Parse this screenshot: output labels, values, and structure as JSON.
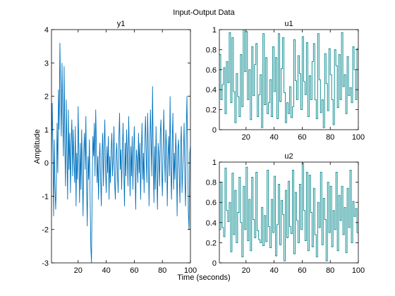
{
  "figure": {
    "title": "Input-Output Data",
    "xlabel": "Time (seconds)",
    "ylabel": "Amplitude"
  },
  "colors": {
    "y1": "#0072bd",
    "u": "#00868b",
    "axis": "#000000",
    "background": "#ffffff"
  },
  "chart_data": [
    {
      "type": "line",
      "title": "y1",
      "ylabel": "Amplitude",
      "xlim": [
        1,
        100
      ],
      "ylim": [
        -3,
        4
      ],
      "xticks": [
        20,
        40,
        60,
        80,
        100
      ],
      "yticks": [
        -3,
        -2,
        -1,
        0,
        1,
        2,
        3,
        4
      ],
      "series": [
        {
          "x": [
            1,
            1.5,
            2,
            2.5,
            3,
            3.5,
            4,
            4.5,
            5,
            5.5,
            6,
            6.5,
            7,
            7.5,
            8,
            8.5,
            9,
            9.5,
            10,
            10.5,
            11,
            11.5,
            12,
            12.5,
            13,
            13.5,
            14,
            14.5,
            15,
            15.5,
            16,
            16.5,
            17,
            17.5,
            18,
            18.5,
            19,
            19.5,
            20,
            20.5,
            21,
            21.5,
            22,
            22.5,
            23,
            23.5,
            24,
            24.5,
            25,
            25.5,
            26,
            26.5,
            27,
            27.5,
            28,
            28.5,
            29,
            29.5,
            30,
            30.5,
            31,
            31.5,
            32,
            32.5,
            33,
            33.5,
            34,
            34.5,
            35,
            35.5,
            36,
            36.5,
            37,
            37.5,
            38,
            38.5,
            39,
            39.5,
            40,
            40.5,
            41,
            41.5,
            42,
            42.5,
            43,
            43.5,
            44,
            44.5,
            45,
            45.5,
            46,
            46.5,
            47,
            47.5,
            48,
            48.5,
            49,
            49.5,
            50,
            50.5,
            51,
            51.5,
            52,
            52.5,
            53,
            53.5,
            54,
            54.5,
            55,
            55.5,
            56,
            56.5,
            57,
            57.5,
            58,
            58.5,
            59,
            59.5,
            60,
            60.5,
            61,
            61.5,
            62,
            62.5,
            63,
            63.5,
            64,
            64.5,
            65,
            65.5,
            66,
            66.5,
            67,
            67.5,
            68,
            68.5,
            69,
            69.5,
            70,
            70.5,
            71,
            71.5,
            72,
            72.5,
            73,
            73.5,
            74,
            74.5,
            75,
            75.5,
            76,
            76.5,
            77,
            77.5,
            78,
            78.5,
            79,
            79.5,
            80,
            80.5,
            81,
            81.5,
            82,
            82.5,
            83,
            83.5,
            84,
            84.5,
            85,
            85.5,
            86,
            86.5,
            87,
            87.5,
            88,
            88.5,
            89,
            89.5,
            90,
            90.5,
            91,
            91.5,
            92,
            92.5,
            93,
            93.5,
            94,
            94.5,
            95,
            95.5,
            96,
            96.5,
            97,
            97.5,
            98,
            98.5,
            99,
            99.5,
            100
          ],
          "y": [
            0.3,
            1.8,
            0.5,
            -1.6,
            0.7,
            -0.8,
            -1.4,
            -0.5,
            1.2,
            -0.3,
            2.2,
            1.0,
            3.6,
            2.1,
            0.8,
            3.0,
            1.5,
            0.2,
            2.9,
            0.6,
            -0.7,
            1.9,
            0.4,
            -1.1,
            1.6,
            -0.2,
            0.9,
            -0.9,
            0.6,
            1.3,
            -0.4,
            1.0,
            0.0,
            -0.6,
            1.1,
            -1.3,
            0.3,
            -0.5,
            1.7,
            0.2,
            -1.2,
            0.6,
            -0.8,
            1.0,
            -0.3,
            -1.6,
            0.4,
            0.9,
            -0.2,
            1.4,
            -0.7,
            -1.9,
            0.2,
            -0.5,
            0.7,
            -1.0,
            -2.5,
            -3.0,
            -0.6,
            0.8,
            0.2,
            1.2,
            -0.4,
            1.6,
            0.5,
            -0.6,
            0.2,
            -1.1,
            0.1,
            0.6,
            -0.5,
            -1.3,
            0.3,
            0.9,
            -0.7,
            0.4,
            1.3,
            -0.2,
            -0.9,
            0.5,
            -0.3,
            0.8,
            -1.1,
            0.2,
            -0.6,
            0.4,
            0.9,
            -0.4,
            0.1,
            1.1,
            -0.6,
            -1.1,
            0.2,
            0.6,
            -0.3,
            -0.9,
            0.7,
            1.5,
            -0.2,
            0.4,
            -0.8,
            0.3,
            1.2,
            -0.1,
            -1.3,
            0.6,
            -0.4,
            1.0,
            0.3,
            -0.7,
            1.4,
            0.2,
            -1.0,
            0.5,
            -0.4,
            0.8,
            -0.8,
            0.3,
            1.1,
            -0.2,
            -1.4,
            0.4,
            0.1,
            -0.6,
            0.9,
            -0.3,
            0.6,
            -1.1,
            0.2,
            1.2,
            -0.5,
            0.3,
            -0.9,
            0.7,
            1.4,
            0.2,
            -0.6,
            1.5,
            0.4,
            -1.3,
            0.3,
            1.6,
            0.6,
            -0.4,
            2.3,
            0.2,
            -1.2,
            0.5,
            -0.8,
            1.1,
            -0.3,
            -1.4,
            0.6,
            0.2,
            -0.7,
            0.9,
            1.3,
            -0.2,
            -1.0,
            0.4,
            1.6,
            0.3,
            -0.6,
            1.0,
            0.5,
            -1.3,
            0.2,
            0.8,
            -0.4,
            2.0,
            -0.2,
            -1.1,
            0.6,
            1.5,
            -0.8,
            0.3,
            -0.5,
            0.9,
            0.2,
            -1.6,
            0.4,
            0.7,
            -0.3,
            -1.2,
            0.5,
            1.1,
            -0.9,
            -0.2,
            0.3,
            1.2,
            -0.5,
            -1.3,
            0.9,
            2.0,
            0.3,
            -1.5,
            -2.0,
            0.3,
            0.5
          ]
        }
      ]
    },
    {
      "type": "line",
      "step": true,
      "title": "u1",
      "xlim": [
        1,
        100
      ],
      "ylim": [
        0,
        1
      ],
      "xticks": [
        20,
        40,
        60,
        80,
        100
      ],
      "yticks": [
        0,
        0.2,
        0.4,
        0.6,
        0.8,
        1
      ],
      "series": [
        {
          "x": [
            1,
            2,
            3,
            4,
            5,
            6,
            7,
            8,
            9,
            10,
            11,
            12,
            13,
            14,
            15,
            16,
            17,
            18,
            19,
            20,
            21,
            22,
            23,
            24,
            25,
            26,
            27,
            28,
            29,
            30,
            31,
            32,
            33,
            34,
            35,
            36,
            37,
            38,
            39,
            40,
            41,
            42,
            43,
            44,
            45,
            46,
            47,
            48,
            49,
            50,
            51,
            52,
            53,
            54,
            55,
            56,
            57,
            58,
            59,
            60,
            61,
            62,
            63,
            64,
            65,
            66,
            67,
            68,
            69,
            70,
            71,
            72,
            73,
            74,
            75,
            76,
            77,
            78,
            79,
            80,
            81,
            82,
            83,
            84,
            85,
            86,
            87,
            88,
            89,
            90,
            91,
            92,
            93,
            94,
            95,
            96,
            97,
            98,
            99,
            100
          ],
          "y": [
            0.75,
            0.3,
            0.45,
            0.62,
            0.16,
            0.68,
            0.47,
            0.97,
            0.27,
            0.92,
            0.38,
            0.07,
            0.56,
            0.33,
            0.13,
            0.75,
            0.23,
            1.0,
            0.58,
            0.98,
            0.3,
            0.6,
            0.1,
            0.83,
            0.34,
            0.65,
            0.86,
            0.13,
            0.35,
            0.55,
            0.02,
            0.96,
            0.25,
            0.72,
            0.16,
            0.27,
            0.5,
            0.13,
            0.83,
            0.38,
            0.72,
            0.11,
            0.96,
            0.28,
            0.61,
            0.92,
            0.37,
            0.07,
            0.27,
            0.16,
            0.43,
            0.12,
            0.23,
            0.9,
            0.49,
            0.3,
            0.74,
            0.56,
            0.2,
            0.93,
            0.48,
            0.35,
            0.87,
            0.13,
            0.54,
            0.3,
            0.68,
            0.86,
            0.3,
            0.11,
            0.96,
            0.5,
            0.17,
            0.3,
            0.02,
            0.76,
            0.46,
            0.19,
            0.81,
            0.55,
            0.3,
            0.05,
            0.8,
            0.64,
            0.22,
            0.75,
            0.3,
            0.97,
            0.43,
            0.55,
            0.16,
            0.73,
            0.34,
            0.42,
            0.27,
            0.83,
            0.6,
            0.3,
            0.81,
            0.8
          ]
        }
      ]
    },
    {
      "type": "line",
      "step": true,
      "title": "u2",
      "xlim": [
        1,
        100
      ],
      "ylim": [
        0,
        1
      ],
      "xticks": [
        20,
        40,
        60,
        80,
        100
      ],
      "yticks": [
        0,
        0.2,
        0.4,
        0.6,
        0.8,
        1
      ],
      "series": [
        {
          "x": [
            1,
            2,
            3,
            4,
            5,
            6,
            7,
            8,
            9,
            10,
            11,
            12,
            13,
            14,
            15,
            16,
            17,
            18,
            19,
            20,
            21,
            22,
            23,
            24,
            25,
            26,
            27,
            28,
            29,
            30,
            31,
            32,
            33,
            34,
            35,
            36,
            37,
            38,
            39,
            40,
            41,
            42,
            43,
            44,
            45,
            46,
            47,
            48,
            49,
            50,
            51,
            52,
            53,
            54,
            55,
            56,
            57,
            58,
            59,
            60,
            61,
            62,
            63,
            64,
            65,
            66,
            67,
            68,
            69,
            70,
            71,
            72,
            73,
            74,
            75,
            76,
            77,
            78,
            79,
            80,
            81,
            82,
            83,
            84,
            85,
            86,
            87,
            88,
            89,
            90,
            91,
            92,
            93,
            94,
            95,
            96,
            97,
            98,
            99,
            100
          ],
          "y": [
            0.33,
            0.8,
            0.35,
            0.26,
            0.94,
            0.52,
            0.41,
            0.6,
            0.11,
            0.89,
            0.28,
            0.72,
            0.2,
            0.5,
            0.85,
            0.4,
            0.06,
            0.76,
            0.33,
            0.95,
            0.22,
            0.63,
            0.12,
            0.85,
            0.43,
            0.25,
            0.9,
            0.32,
            0.23,
            0.2,
            0.55,
            0.17,
            0.47,
            0.21,
            0.92,
            0.36,
            0.15,
            0.63,
            0.3,
            0.86,
            0.07,
            0.38,
            0.78,
            0.18,
            0.62,
            0.48,
            0.02,
            0.72,
            0.25,
            0.81,
            0.36,
            0.29,
            0.92,
            0.09,
            0.7,
            0.42,
            0.2,
            0.78,
            0.33,
            0.99,
            0.52,
            0.22,
            0.9,
            0.12,
            0.87,
            0.5,
            0.16,
            0.74,
            0.28,
            0.06,
            0.6,
            0.35,
            0.9,
            0.18,
            0.64,
            0.43,
            0.02,
            0.8,
            0.3,
            0.76,
            0.16,
            0.52,
            0.33,
            0.9,
            0.12,
            0.67,
            0.42,
            0.76,
            0.28,
            0.55,
            0.1,
            0.74,
            0.35,
            0.92,
            0.2,
            0.61,
            0.46,
            0.54,
            0.3,
            0.4
          ]
        }
      ]
    }
  ]
}
